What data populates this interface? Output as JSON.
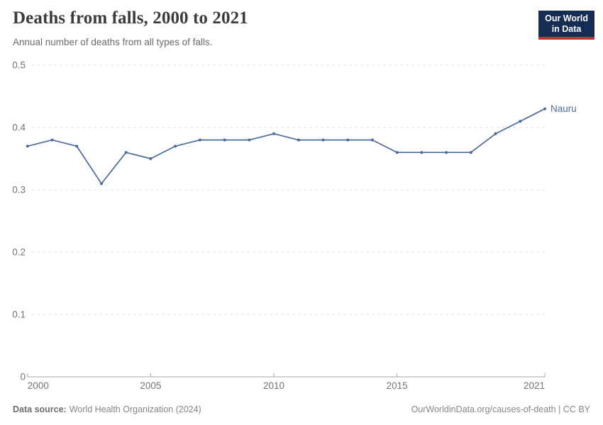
{
  "header": {
    "title": "Deaths from falls, 2000 to 2021",
    "subtitle": "Annual number of deaths from all types of falls.",
    "logo_line1": "Our World",
    "logo_line2": "in Data"
  },
  "chart_data": {
    "type": "line",
    "title": "Deaths from falls, 2000 to 2021",
    "subtitle": "Annual number of deaths from all types of falls.",
    "x": [
      2000,
      2001,
      2002,
      2003,
      2004,
      2005,
      2006,
      2007,
      2008,
      2009,
      2010,
      2011,
      2012,
      2013,
      2014,
      2015,
      2016,
      2017,
      2018,
      2019,
      2020,
      2021
    ],
    "series": [
      {
        "name": "Nauru",
        "color": "#4C6A9C",
        "values": [
          0.37,
          0.38,
          0.37,
          0.31,
          0.36,
          0.35,
          0.37,
          0.38,
          0.38,
          0.38,
          0.39,
          0.38,
          0.38,
          0.38,
          0.38,
          0.36,
          0.36,
          0.36,
          0.36,
          0.39,
          0.41,
          0.43
        ]
      }
    ],
    "xlabel": "",
    "ylabel": "",
    "ylim": [
      0,
      0.5
    ],
    "yticks": [
      0,
      0.1,
      0.2,
      0.3,
      0.4,
      0.5
    ],
    "ytick_labels": [
      "0",
      "0.1",
      "0.2",
      "0.3",
      "0.4",
      "0.5"
    ],
    "xticks": [
      2000,
      2005,
      2010,
      2015,
      2021
    ],
    "grid": "horizontal-dashed",
    "legend": "line-end-label",
    "markers": true
  },
  "footer": {
    "source_label": "Data source:",
    "source_text": "World Health Organization (2024)",
    "link_text": "OurWorldinData.org/causes-of-death | CC BY"
  },
  "colors": {
    "line": "#4C6A9C",
    "grid": "#DBDBDB",
    "axis": "#A6A6A6",
    "tick_text": "#737373",
    "logo_bg": "#152D53",
    "logo_accent": "#C0362C"
  }
}
